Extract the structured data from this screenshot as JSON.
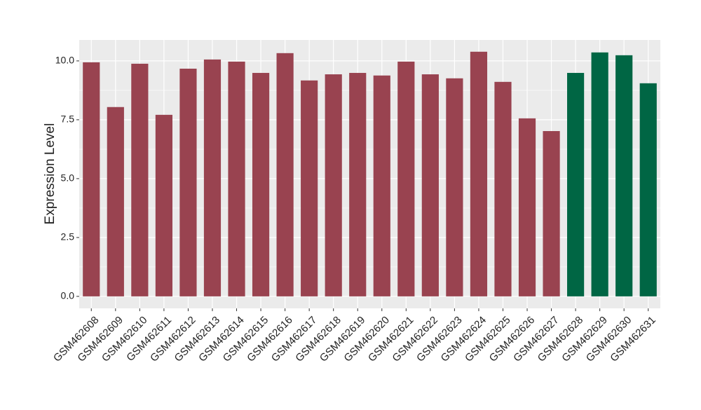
{
  "chart_data": {
    "type": "bar",
    "y_label": "Expression Level",
    "categories": [
      "GSM462608",
      "GSM462609",
      "GSM462610",
      "GSM462611",
      "GSM462612",
      "GSM462613",
      "GSM462614",
      "GSM462615",
      "GSM462616",
      "GSM462617",
      "GSM462618",
      "GSM462619",
      "GSM462620",
      "GSM462621",
      "GSM462622",
      "GSM462623",
      "GSM462624",
      "GSM462625",
      "GSM462626",
      "GSM462627",
      "GSM462628",
      "GSM462629",
      "GSM462630",
      "GSM462631"
    ],
    "values": [
      9.94,
      8.04,
      9.88,
      7.71,
      9.67,
      10.06,
      9.97,
      9.49,
      10.33,
      9.17,
      9.43,
      9.49,
      9.38,
      9.97,
      9.43,
      9.26,
      10.39,
      9.11,
      7.56,
      7.02,
      9.49,
      10.36,
      10.24,
      9.05
    ],
    "colors": [
      "#994350",
      "#994350",
      "#994350",
      "#994350",
      "#994350",
      "#994350",
      "#994350",
      "#994350",
      "#994350",
      "#994350",
      "#994350",
      "#994350",
      "#994350",
      "#994350",
      "#994350",
      "#994350",
      "#994350",
      "#994350",
      "#994350",
      "#994350",
      "#006644",
      "#006644",
      "#006644",
      "#006644"
    ],
    "ylim": [
      -0.51,
      10.89
    ],
    "yticks": [
      {
        "value": 0,
        "label": "0.0"
      },
      2.5,
      {
        "value": 5,
        "label": "5.0"
      },
      7.5,
      {
        "value": 10,
        "label": "10.0"
      }
    ],
    "grid": true
  }
}
